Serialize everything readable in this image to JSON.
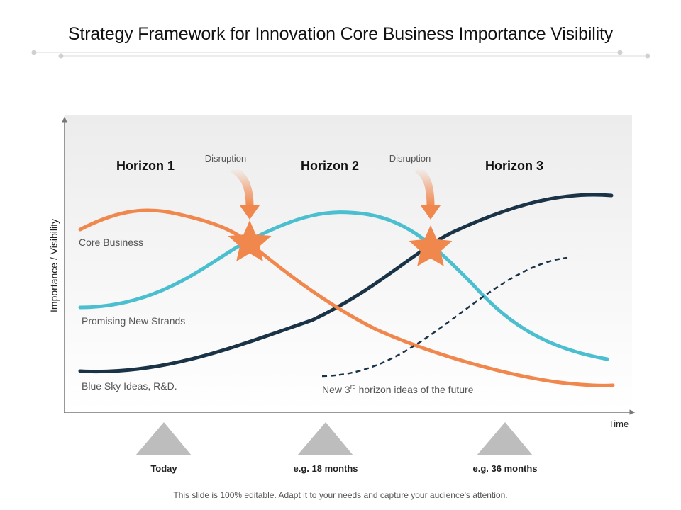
{
  "title": "Strategy Framework for Innovation Core Business Importance Visibility",
  "axes": {
    "y_label": "Importance / Visibility",
    "x_label": "Time"
  },
  "horizons": [
    "Horizon 1",
    "Horizon 2",
    "Horizon 3"
  ],
  "disruptions": [
    "Disruption",
    "Disruption"
  ],
  "curves": {
    "core_business": "Core Business",
    "promising_new_strands": "Promising New Strands",
    "blue_sky": "Blue Sky Ideas, R&D.",
    "future_prefix": "New 3",
    "future_sup": "rd",
    "future_suffix": " horizon  ideas of the future"
  },
  "milestones": [
    "Today",
    "e.g. 18 months",
    "e.g. 36 months"
  ],
  "colors": {
    "core_business": "#F0884E",
    "promising_new_strands": "#4BBFCF",
    "blue_sky": "#1B3347",
    "star": "#F0884E",
    "triangle": "#BDBDBD"
  },
  "footer": "This slide is 100% editable. Adapt it to your needs and capture your audience's attention."
}
